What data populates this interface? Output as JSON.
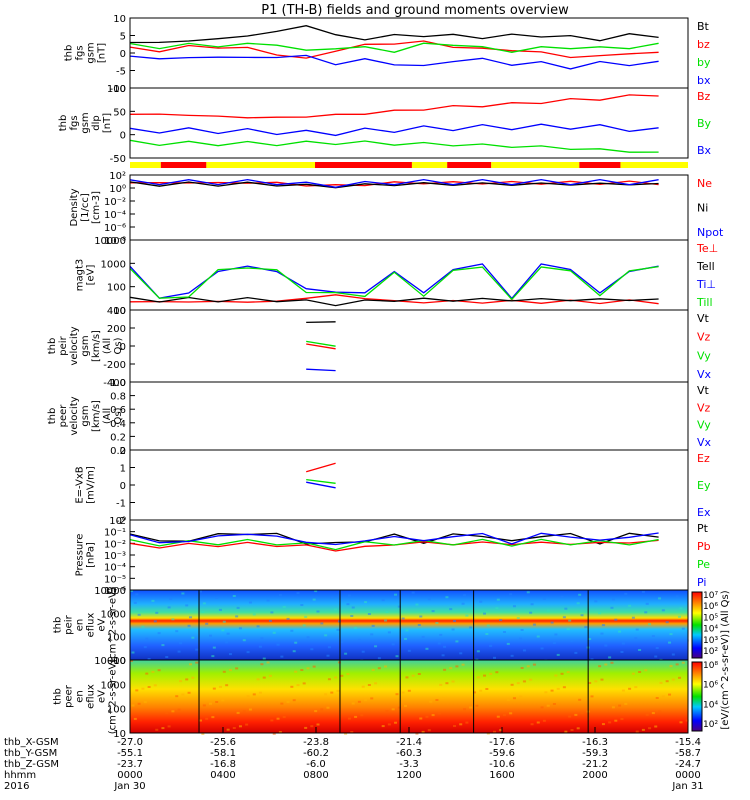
{
  "title": "P1 (TH-B) fields and ground moments overview",
  "colors": {
    "black": "#000000",
    "red": "#ff0000",
    "green": "#00e000",
    "blue": "#0000ff",
    "yellow": "#ffff00"
  },
  "mode_bar": [
    {
      "t0": 0,
      "t1": 1.05,
      "color": "yellow"
    },
    {
      "t0": 1.05,
      "t1": 2.6,
      "color": "red"
    },
    {
      "t0": 2.6,
      "t1": 6.3,
      "color": "yellow"
    },
    {
      "t0": 6.3,
      "t1": 9.6,
      "color": "red"
    },
    {
      "t0": 9.6,
      "t1": 10.8,
      "color": "yellow"
    },
    {
      "t0": 10.8,
      "t1": 12.3,
      "color": "red"
    },
    {
      "t0": 12.3,
      "t1": 15.3,
      "color": "yellow"
    },
    {
      "t0": 15.3,
      "t1": 16.7,
      "color": "red"
    },
    {
      "t0": 16.7,
      "t1": 19,
      "color": "yellow"
    }
  ],
  "chart_data": [
    {
      "type": "line",
      "ylabel": "thb fgs gsm [nT]",
      "ylim": [
        -10,
        10
      ],
      "yticks": [
        "10",
        "5",
        "0",
        "-5",
        "-10"
      ],
      "series": [
        {
          "name": "Bt",
          "color": "black",
          "values": [
            3,
            3,
            3.5,
            4,
            5,
            6,
            8,
            5,
            4,
            5,
            5,
            5,
            4.5,
            5,
            5,
            4.5,
            4,
            5,
            5
          ]
        },
        {
          "name": "bz",
          "color": "red",
          "values": [
            1,
            1,
            1.5,
            2,
            1,
            0,
            -2,
            1,
            2,
            3,
            3,
            2,
            1,
            1,
            0,
            -1,
            -1,
            0,
            0
          ]
        },
        {
          "name": "by",
          "color": "green",
          "values": [
            2,
            2,
            2,
            2.5,
            2,
            3,
            0,
            2,
            1,
            1,
            2,
            3,
            1,
            1,
            1,
            2,
            1,
            2,
            2
          ]
        },
        {
          "name": "bx",
          "color": "blue",
          "values": [
            -1,
            -1.5,
            -1.5,
            -1,
            -1.5,
            -1,
            -1,
            -3,
            -2,
            -3,
            -4,
            -2,
            -2,
            -3,
            -3,
            -4,
            -3,
            -3,
            -3
          ]
        }
      ]
    },
    {
      "type": "line",
      "ylabel": "thb fgs gsm dlp [nT]",
      "ylim": [
        -60,
        100
      ],
      "yticks": [
        "100",
        "50",
        "0",
        "-50"
      ],
      "series": [
        {
          "name": "Bz",
          "color": "red",
          "values": [
            40,
            40,
            38,
            35,
            33,
            32,
            35,
            38,
            42,
            47,
            52,
            57,
            60,
            63,
            68,
            72,
            76,
            80,
            86
          ]
        },
        {
          "name": "By",
          "color": "green",
          "values": [
            -25,
            -26,
            -27,
            -27,
            -27,
            -27,
            -26,
            -25,
            -25,
            -27,
            -28,
            -29,
            -31,
            -33,
            -35,
            -38,
            -41,
            -45,
            -48
          ]
        },
        {
          "name": "Bx",
          "color": "blue",
          "values": [
            2,
            3,
            3,
            2,
            1,
            0,
            -3,
            -2,
            2,
            5,
            7,
            9,
            10,
            11,
            11,
            12,
            10,
            7,
            3
          ]
        }
      ]
    },
    {
      "type": "line",
      "ylabel": "Density [1/cc] [cm-3]",
      "ylim": [
        -8,
        2
      ],
      "yticks": [
        "10²",
        "10⁰",
        "10⁻²",
        "10⁻⁴",
        "10⁻⁶",
        "10⁻⁸"
      ],
      "series": [
        {
          "name": "Ne",
          "color": "red",
          "values": [
            0.8,
            0.8,
            0.8,
            0.8,
            0.8,
            0.8,
            0.4,
            0.4,
            0.5,
            0.8,
            0.8,
            0.8,
            0.8,
            0.8,
            0.8,
            0.8,
            0.8,
            0.8,
            0.8
          ]
        },
        {
          "name": "Ni",
          "color": "black",
          "values": [
            0.6,
            0.6,
            0.6,
            0.6,
            0.6,
            0.6,
            0.3,
            0.3,
            0.4,
            0.6,
            0.6,
            0.6,
            0.6,
            0.6,
            0.6,
            0.6,
            0.6,
            0.6,
            0.6
          ]
        },
        {
          "name": "Npot",
          "color": "blue",
          "values": [
            0.9,
            0.9,
            0.9,
            0.9,
            0.9,
            0.9,
            0.5,
            0.5,
            0.6,
            0.9,
            0.9,
            0.9,
            0.9,
            0.9,
            0.9,
            0.9,
            0.9,
            0.9,
            0.9
          ]
        }
      ]
    },
    {
      "type": "line",
      "ylabel": "magt3 [eV]",
      "ylim": [
        0.6,
        4
      ],
      "yticks": [
        "10000",
        "1000",
        "100",
        "10"
      ],
      "series": [
        {
          "name": "Te⊥",
          "color": "red",
          "values": [
            1,
            1,
            1,
            1,
            1,
            1,
            1.2,
            1.3,
            1.2,
            1,
            1,
            1,
            1,
            1,
            1,
            1,
            1,
            1,
            1
          ]
        },
        {
          "name": "Tell",
          "color": "black",
          "values": [
            1.1,
            1.1,
            1.1,
            1.1,
            1.1,
            1.1,
            1,
            0.9,
            1,
            1.1,
            1.1,
            1.1,
            1.1,
            1.1,
            1.1,
            1.1,
            1.1,
            1.1,
            1.1
          ]
        },
        {
          "name": "Ti⊥",
          "color": "blue",
          "values": [
            2.6,
            1.3,
            1.3,
            2.6,
            2.6,
            2.6,
            1.5,
            1.6,
            1.3,
            2.6,
            1.3,
            2.7,
            2.7,
            1.3,
            2.7,
            2.7,
            1.3,
            2.6,
            2.6
          ]
        },
        {
          "name": "Till",
          "color": "green",
          "values": [
            2.6,
            1.2,
            1.2,
            2.6,
            2.6,
            2.6,
            1.4,
            1.5,
            1.2,
            2.5,
            1.2,
            2.6,
            2.6,
            1.2,
            2.6,
            2.6,
            1.2,
            2.6,
            2.6
          ]
        }
      ]
    },
    {
      "type": "line",
      "ylabel": "thb peir velocity gsm [km/s] (All Qs)",
      "ylim": [
        -400,
        400
      ],
      "yticks": [
        "400",
        "200",
        "0",
        "-200",
        "-400"
      ],
      "series": [
        {
          "name": "Vt",
          "color": "black",
          "values": [
            null,
            null,
            280,
            null,
            null,
            null,
            270,
            260,
            null,
            null,
            null,
            240,
            null,
            null,
            null,
            250,
            null,
            null,
            null
          ]
        },
        {
          "name": "Vz",
          "color": "red",
          "values": [
            null,
            null,
            -10,
            null,
            null,
            null,
            0,
            -10,
            null,
            null,
            null,
            0,
            null,
            null,
            null,
            -10,
            null,
            null,
            null
          ]
        },
        {
          "name": "Vy",
          "color": "green",
          "values": [
            null,
            null,
            40,
            null,
            null,
            null,
            20,
            30,
            null,
            null,
            null,
            20,
            null,
            null,
            null,
            30,
            null,
            null,
            null
          ]
        },
        {
          "name": "Vx",
          "color": "blue",
          "values": [
            null,
            null,
            -280,
            null,
            null,
            null,
            -270,
            -260,
            null,
            null,
            null,
            -240,
            null,
            null,
            null,
            -250,
            null,
            null,
            null
          ]
        }
      ]
    },
    {
      "type": "line",
      "ylabel": "thb peer velocity gsm [km/s] (All Qs)",
      "ylim": [
        0,
        1
      ],
      "yticks": [
        "1.0",
        "0.8",
        "0.6",
        "0.4",
        "0.2",
        "0.0"
      ],
      "series": [
        {
          "name": "Vt",
          "color": "black",
          "values": []
        },
        {
          "name": "Vz",
          "color": "red",
          "values": []
        },
        {
          "name": "Vy",
          "color": "green",
          "values": []
        },
        {
          "name": "Vx",
          "color": "blue",
          "values": []
        }
      ]
    },
    {
      "type": "line",
      "ylabel": "E=-VxB [mV/m]",
      "ylim": [
        -2,
        2
      ],
      "yticks": [
        "2",
        "1",
        "0",
        "-1",
        "-2"
      ],
      "series": [
        {
          "name": "Ez",
          "color": "red",
          "values": [
            null,
            null,
            0.8,
            null,
            null,
            null,
            0.8,
            1.2,
            null,
            null,
            null,
            0.8,
            null,
            null,
            null,
            1.1,
            null,
            null,
            null
          ]
        },
        {
          "name": "Ey",
          "color": "green",
          "values": [
            null,
            null,
            0.2,
            null,
            null,
            null,
            0.2,
            0.2,
            null,
            null,
            null,
            0,
            null,
            null,
            null,
            0.1,
            null,
            null,
            null
          ]
        },
        {
          "name": "Ex",
          "color": "blue",
          "values": [
            null,
            null,
            0,
            null,
            null,
            null,
            0,
            0,
            null,
            null,
            null,
            0,
            null,
            null,
            null,
            0,
            null,
            null,
            null
          ]
        }
      ]
    },
    {
      "type": "line",
      "ylabel": "Pressure [nPa]",
      "ylim": [
        -6,
        0
      ],
      "yticks": [
        "10⁰",
        "10⁻¹",
        "10⁻²",
        "10⁻³",
        "10⁻⁴",
        "10⁻⁵",
        "10⁻⁶"
      ],
      "series": [
        {
          "name": "Pt",
          "color": "black",
          "values": [
            -1.2,
            -1.8,
            -1.8,
            -1.2,
            -1.2,
            -1.2,
            -2,
            -2,
            -1.8,
            -1.3,
            -1.9,
            -1.3,
            -1.3,
            -1.9,
            -1.3,
            -1.3,
            -1.9,
            -1.3,
            -1.3
          ]
        },
        {
          "name": "Pb",
          "color": "red",
          "values": [
            -2.2,
            -2.2,
            -2.2,
            -2.1,
            -2.1,
            -2.1,
            -2.3,
            -2.5,
            -2.4,
            -2,
            -2,
            -2,
            -2,
            -2,
            -2,
            -2,
            -2,
            -1.9,
            -1.8
          ]
        },
        {
          "name": "Pe",
          "color": "green",
          "values": [
            -1.9,
            -2,
            -2,
            -1.9,
            -1.9,
            -1.9,
            -2.2,
            -2.3,
            -2.1,
            -1.9,
            -2,
            -1.9,
            -1.9,
            -2,
            -1.9,
            -1.9,
            -2,
            -1.9,
            -1.9
          ]
        },
        {
          "name": "Pi",
          "color": "blue",
          "values": [
            -1.3,
            -1.9,
            -1.9,
            -1.3,
            -1.3,
            -1.3,
            -2,
            -2,
            -1.9,
            -1.3,
            -1.9,
            -1.3,
            -1.3,
            -1.9,
            -1.3,
            -1.3,
            -1.9,
            -1.3,
            -1.3
          ]
        }
      ]
    },
    {
      "type": "heatmap",
      "ylabel": "thb peir en eflux eV (cm^2-s-sr-eV)",
      "yticks": [
        "10000",
        "1000",
        "100",
        "10"
      ],
      "colorbar": {
        "label": "[eV/(cm^2-s-sr-eV)] (All Qs)",
        "ticks": [
          "10⁷",
          "10⁶",
          "10⁵",
          "10⁴",
          "10³",
          "10²"
        ]
      }
    },
    {
      "type": "heatmap",
      "ylabel": "thb peer en eflux eV (cm^2-s-sr-eV)",
      "yticks": [
        "10000",
        "1000",
        "100",
        "10"
      ],
      "colorbar": {
        "label": "",
        "ticks": [
          "10⁸",
          "10⁶",
          "10⁴",
          "10²"
        ]
      }
    }
  ],
  "xaxis": {
    "row_labels": [
      "thb_X-GSM",
      "thb_Y-GSM",
      "thb_Z-GSM",
      "hhmm",
      "2016"
    ],
    "columns": [
      {
        "v": [
          "-27.0",
          "-55.1",
          "-23.7",
          "0000",
          "Jan 30"
        ]
      },
      {
        "v": [
          "-25.6",
          "-58.1",
          "-16.8",
          "0400",
          ""
        ]
      },
      {
        "v": [
          "-23.8",
          "-60.2",
          "-6.0",
          "0800",
          ""
        ]
      },
      {
        "v": [
          "-21.4",
          "-60.3",
          "-3.3",
          "1200",
          ""
        ]
      },
      {
        "v": [
          "-17.6",
          "-59.6",
          "-10.6",
          "1600",
          ""
        ]
      },
      {
        "v": [
          "-16.3",
          "-59.3",
          "-21.2",
          "2000",
          ""
        ]
      },
      {
        "v": [
          "-15.4",
          "-58.7",
          "-24.7",
          "0000",
          "Jan 31"
        ]
      }
    ]
  }
}
